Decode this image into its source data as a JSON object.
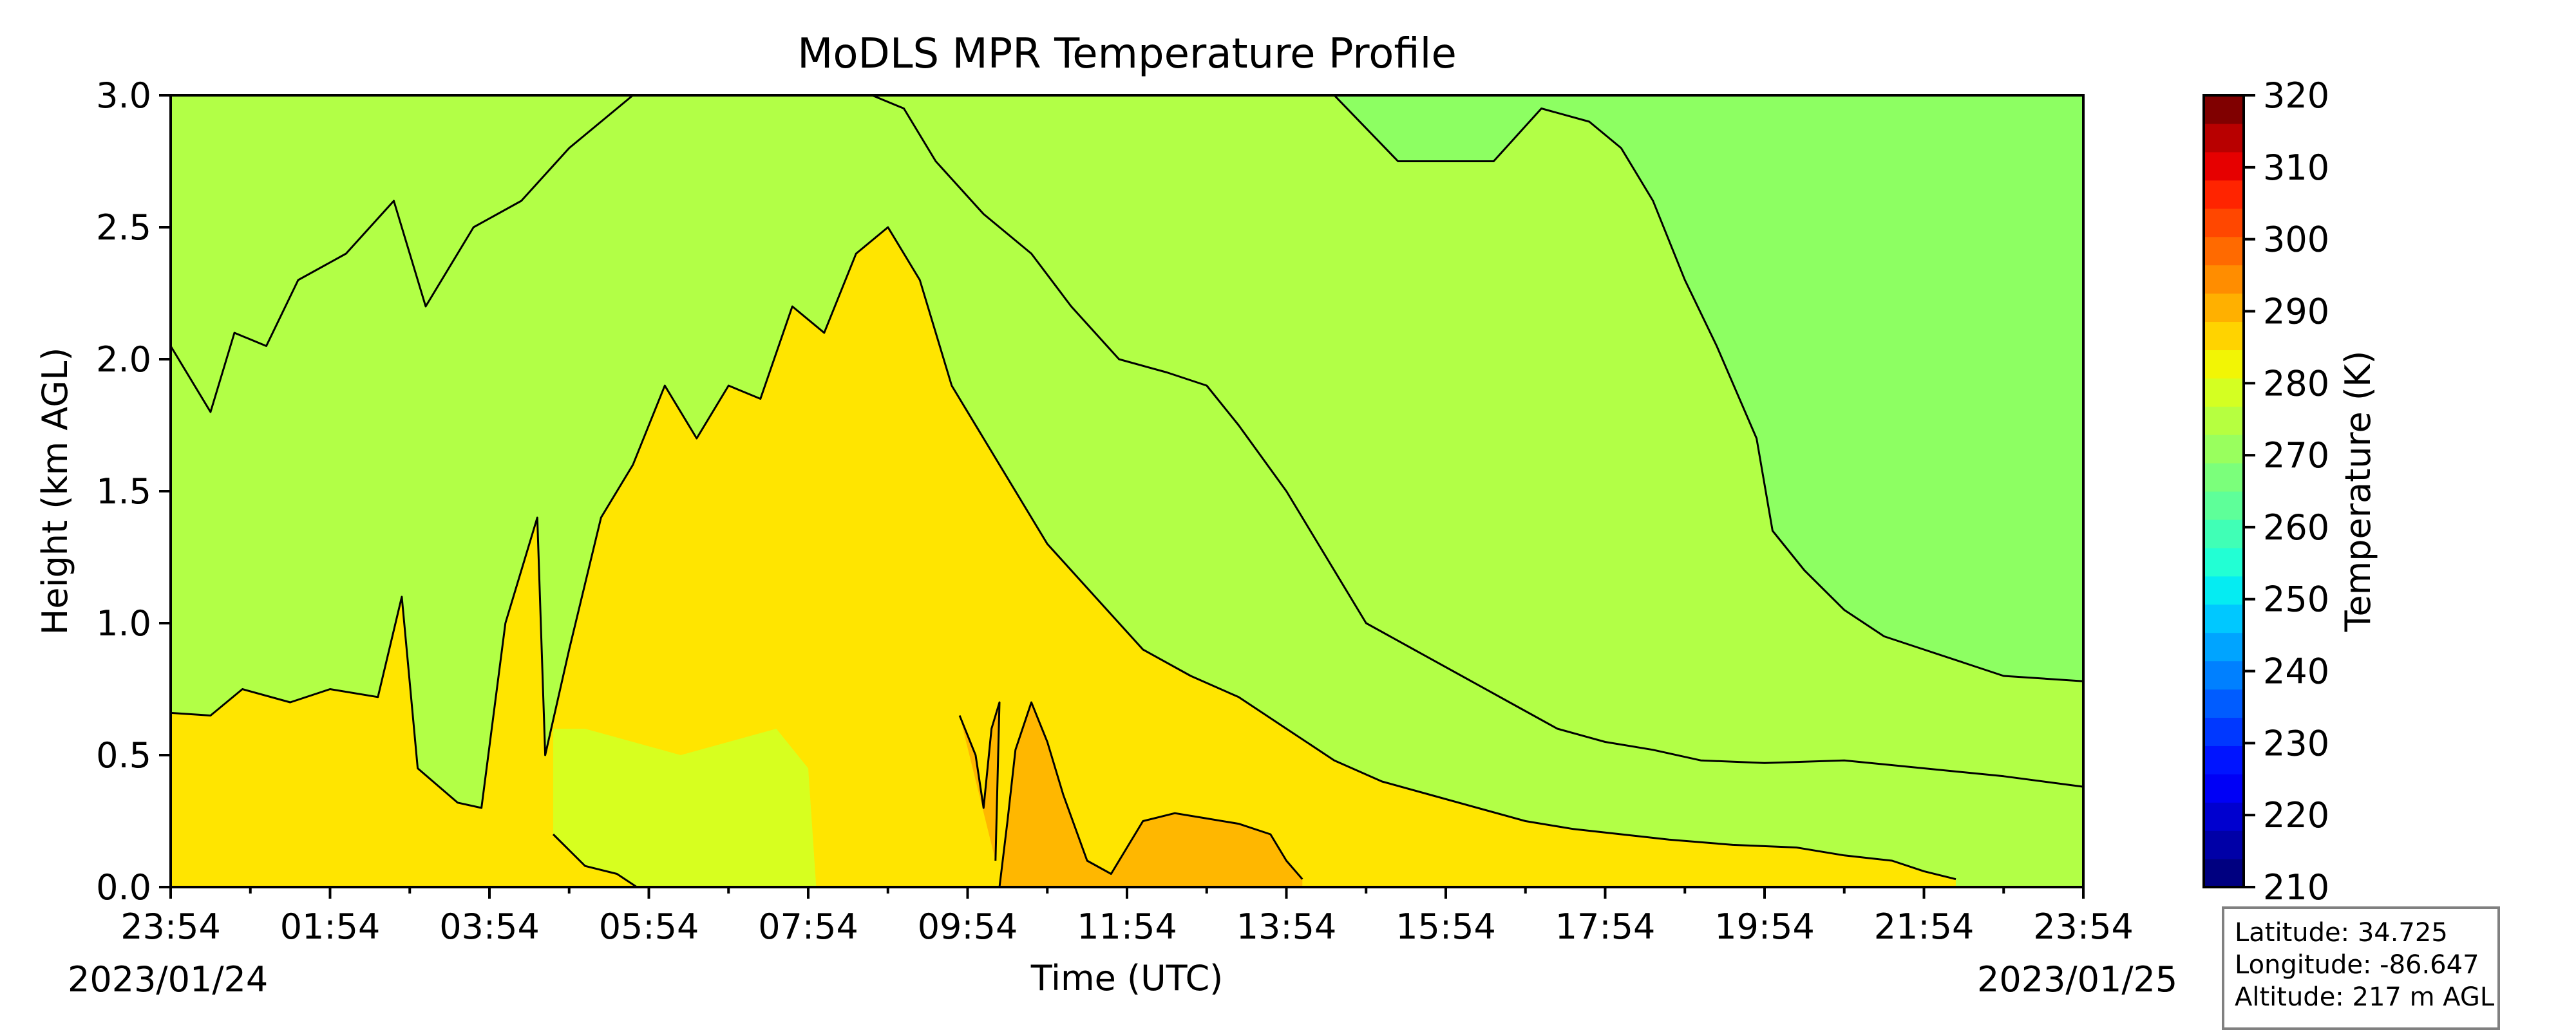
{
  "chart_data": {
    "type": "heatmap",
    "title": "MoDLS MPR Temperature Profile",
    "xlabel": "Time (UTC)",
    "ylabel": "Height (km AGL)",
    "x_tick_labels": [
      "23:54",
      "01:54",
      "03:54",
      "05:54",
      "07:54",
      "09:54",
      "11:54",
      "13:54",
      "15:54",
      "17:54",
      "19:54",
      "21:54",
      "23:54"
    ],
    "x_range_hours": [
      0,
      24
    ],
    "y_ticks": [
      0.0,
      0.5,
      1.0,
      1.5,
      2.0,
      2.5,
      3.0
    ],
    "y_tick_labels": [
      "0.0",
      "0.5",
      "1.0",
      "1.5",
      "2.0",
      "2.5",
      "3.0"
    ],
    "ylim": [
      0,
      3
    ],
    "start_date": "2023/01/24",
    "end_date": "2023/01/25",
    "colorbar": {
      "label": "Temperature (K)",
      "range": [
        210,
        320
      ],
      "step": 5,
      "tick_values": [
        210,
        220,
        230,
        240,
        250,
        260,
        270,
        280,
        290,
        300,
        310,
        320
      ],
      "tick_labels": [
        "210",
        "220",
        "230",
        "240",
        "250",
        "260",
        "270",
        "280",
        "290",
        "300",
        "310",
        "320"
      ]
    },
    "contour_levels_K": [
      270,
      275,
      280,
      285
    ],
    "contours": [
      {
        "level_K": 270,
        "points": [
          [
            14.6,
            3.0
          ],
          [
            15.4,
            2.75
          ],
          [
            16.6,
            2.75
          ],
          [
            17.2,
            2.95
          ],
          [
            17.8,
            2.9
          ],
          [
            18.2,
            2.8
          ],
          [
            18.6,
            2.6
          ],
          [
            19.0,
            2.3
          ],
          [
            19.4,
            2.05
          ],
          [
            19.9,
            1.7
          ],
          [
            20.1,
            1.35
          ],
          [
            20.5,
            1.2
          ],
          [
            21.0,
            1.05
          ],
          [
            21.5,
            0.95
          ],
          [
            22.0,
            0.9
          ],
          [
            22.5,
            0.85
          ],
          [
            23.0,
            0.8
          ],
          [
            24.0,
            0.78
          ]
        ]
      },
      {
        "level_K": 275,
        "points": [
          [
            0.0,
            2.05
          ],
          [
            0.5,
            1.8
          ],
          [
            0.8,
            2.1
          ],
          [
            1.2,
            2.05
          ],
          [
            1.6,
            2.3
          ],
          [
            2.2,
            2.4
          ],
          [
            2.8,
            2.6
          ],
          [
            3.2,
            2.2
          ],
          [
            3.8,
            2.5
          ],
          [
            4.4,
            2.6
          ],
          [
            5.0,
            2.8
          ],
          [
            5.8,
            3.0
          ],
          [
            6.4,
            3.0
          ],
          [
            7.0,
            3.0
          ],
          [
            7.6,
            3.0
          ],
          [
            8.2,
            3.0
          ],
          [
            8.8,
            3.0
          ],
          [
            9.2,
            2.95
          ],
          [
            9.6,
            2.75
          ],
          [
            10.2,
            2.55
          ],
          [
            10.8,
            2.4
          ],
          [
            11.3,
            2.2
          ],
          [
            11.9,
            2.0
          ],
          [
            12.5,
            1.95
          ],
          [
            13.0,
            1.9
          ],
          [
            13.4,
            1.75
          ],
          [
            14.0,
            1.5
          ],
          [
            14.6,
            1.2
          ],
          [
            15.0,
            1.0
          ],
          [
            15.6,
            0.9
          ],
          [
            16.2,
            0.8
          ],
          [
            16.8,
            0.7
          ],
          [
            17.4,
            0.6
          ],
          [
            18.0,
            0.55
          ],
          [
            18.6,
            0.52
          ],
          [
            19.2,
            0.48
          ],
          [
            20.0,
            0.47
          ],
          [
            21.0,
            0.48
          ],
          [
            22.0,
            0.45
          ],
          [
            23.0,
            0.42
          ],
          [
            24.0,
            0.38
          ]
        ]
      },
      {
        "level_K": 280,
        "points": [
          [
            0.0,
            0.66
          ],
          [
            0.5,
            0.65
          ],
          [
            0.9,
            0.75
          ],
          [
            1.5,
            0.7
          ],
          [
            2.0,
            0.75
          ],
          [
            2.6,
            0.72
          ],
          [
            2.9,
            1.1
          ],
          [
            3.1,
            0.45
          ],
          [
            3.6,
            0.32
          ],
          [
            3.9,
            0.3
          ],
          [
            4.2,
            1.0
          ],
          [
            4.6,
            1.4
          ],
          [
            4.7,
            0.5
          ],
          [
            5.0,
            0.9
          ],
          [
            5.4,
            1.4
          ],
          [
            5.8,
            1.6
          ],
          [
            6.2,
            1.9
          ],
          [
            6.6,
            1.7
          ],
          [
            7.0,
            1.9
          ],
          [
            7.4,
            1.85
          ],
          [
            7.8,
            2.2
          ],
          [
            8.2,
            2.1
          ],
          [
            8.6,
            2.4
          ],
          [
            9.0,
            2.5
          ],
          [
            9.4,
            2.3
          ],
          [
            9.8,
            1.9
          ],
          [
            10.2,
            1.7
          ],
          [
            10.6,
            1.5
          ],
          [
            11.0,
            1.3
          ],
          [
            11.6,
            1.1
          ],
          [
            12.2,
            0.9
          ],
          [
            12.8,
            0.8
          ],
          [
            13.4,
            0.72
          ],
          [
            14.0,
            0.6
          ],
          [
            14.6,
            0.48
          ],
          [
            15.2,
            0.4
          ],
          [
            15.8,
            0.35
          ],
          [
            16.4,
            0.3
          ],
          [
            17.0,
            0.25
          ],
          [
            17.6,
            0.22
          ],
          [
            18.2,
            0.2
          ],
          [
            18.8,
            0.18
          ],
          [
            19.6,
            0.16
          ],
          [
            20.4,
            0.15
          ],
          [
            21.0,
            0.12
          ],
          [
            21.6,
            0.1
          ],
          [
            22.0,
            0.06
          ],
          [
            22.4,
            0.03
          ]
        ]
      },
      {
        "level_K": 280,
        "points": [
          [
            4.8,
            0.2
          ],
          [
            5.2,
            0.08
          ],
          [
            5.6,
            0.05
          ],
          [
            5.85,
            0.0
          ]
        ]
      },
      {
        "level_K": 285,
        "points": [
          [
            10.4,
            0.0
          ],
          [
            10.5,
            0.25
          ],
          [
            10.6,
            0.52
          ],
          [
            10.8,
            0.7
          ],
          [
            11.0,
            0.55
          ],
          [
            11.2,
            0.35
          ],
          [
            11.5,
            0.1
          ],
          [
            11.8,
            0.05
          ],
          [
            12.2,
            0.25
          ],
          [
            12.6,
            0.28
          ],
          [
            13.0,
            0.26
          ],
          [
            13.4,
            0.24
          ],
          [
            13.8,
            0.2
          ],
          [
            14.0,
            0.1
          ],
          [
            14.2,
            0.03
          ]
        ]
      },
      {
        "level_K": 285,
        "points": [
          [
            9.9,
            0.65
          ],
          [
            10.1,
            0.5
          ],
          [
            10.2,
            0.3
          ],
          [
            10.3,
            0.6
          ],
          [
            10.4,
            0.7
          ],
          [
            10.35,
            0.1
          ]
        ]
      }
    ],
    "regions": [
      {
        "level_K": 270,
        "color": "#8dff62",
        "points": [
          [
            14.6,
            3.0
          ],
          [
            15.4,
            2.75
          ],
          [
            16.6,
            2.75
          ],
          [
            17.2,
            2.95
          ],
          [
            17.8,
            2.9
          ],
          [
            18.2,
            2.8
          ],
          [
            18.6,
            2.6
          ],
          [
            19.0,
            2.3
          ],
          [
            19.4,
            2.05
          ],
          [
            19.9,
            1.7
          ],
          [
            20.1,
            1.35
          ],
          [
            20.5,
            1.2
          ],
          [
            21.0,
            1.05
          ],
          [
            21.5,
            0.95
          ],
          [
            22.0,
            0.9
          ],
          [
            22.5,
            0.85
          ],
          [
            23.0,
            0.8
          ],
          [
            24.0,
            0.78
          ],
          [
            24.0,
            3.0
          ]
        ]
      },
      {
        "level_K": 280,
        "color": "#ffe500",
        "points": [
          [
            0.0,
            0.66
          ],
          [
            0.5,
            0.65
          ],
          [
            0.9,
            0.75
          ],
          [
            1.5,
            0.7
          ],
          [
            2.0,
            0.75
          ],
          [
            2.6,
            0.72
          ],
          [
            2.9,
            1.1
          ],
          [
            3.1,
            0.45
          ],
          [
            3.6,
            0.32
          ],
          [
            3.9,
            0.3
          ],
          [
            4.2,
            1.0
          ],
          [
            4.6,
            1.4
          ],
          [
            4.7,
            0.5
          ],
          [
            5.0,
            0.9
          ],
          [
            5.4,
            1.4
          ],
          [
            5.8,
            1.6
          ],
          [
            6.2,
            1.9
          ],
          [
            6.6,
            1.7
          ],
          [
            7.0,
            1.9
          ],
          [
            7.4,
            1.85
          ],
          [
            7.8,
            2.2
          ],
          [
            8.2,
            2.1
          ],
          [
            8.6,
            2.4
          ],
          [
            9.0,
            2.5
          ],
          [
            9.4,
            2.3
          ],
          [
            9.8,
            1.9
          ],
          [
            10.2,
            1.7
          ],
          [
            10.6,
            1.5
          ],
          [
            11.0,
            1.3
          ],
          [
            11.6,
            1.1
          ],
          [
            12.2,
            0.9
          ],
          [
            12.8,
            0.8
          ],
          [
            13.4,
            0.72
          ],
          [
            14.0,
            0.6
          ],
          [
            14.6,
            0.48
          ],
          [
            15.2,
            0.4
          ],
          [
            15.8,
            0.35
          ],
          [
            16.4,
            0.3
          ],
          [
            17.0,
            0.25
          ],
          [
            17.6,
            0.22
          ],
          [
            18.2,
            0.2
          ],
          [
            18.8,
            0.18
          ],
          [
            19.6,
            0.16
          ],
          [
            20.4,
            0.15
          ],
          [
            21.0,
            0.12
          ],
          [
            21.6,
            0.1
          ],
          [
            22.0,
            0.06
          ],
          [
            22.4,
            0.03
          ],
          [
            22.4,
            0.0
          ],
          [
            0.0,
            0.0
          ]
        ]
      },
      {
        "level_K": 275,
        "color": "#d7ff1f",
        "points": [
          [
            4.8,
            0.2
          ],
          [
            5.2,
            0.08
          ],
          [
            5.6,
            0.05
          ],
          [
            5.85,
            0.0
          ],
          [
            8.1,
            0.0
          ],
          [
            8.0,
            0.45
          ],
          [
            7.6,
            0.6
          ],
          [
            7.0,
            0.55
          ],
          [
            6.4,
            0.5
          ],
          [
            5.8,
            0.55
          ],
          [
            5.2,
            0.6
          ],
          [
            4.8,
            0.6
          ]
        ]
      },
      {
        "level_K": 285,
        "color": "#ffb700",
        "points": [
          [
            10.4,
            0.0
          ],
          [
            10.5,
            0.25
          ],
          [
            10.6,
            0.52
          ],
          [
            10.8,
            0.7
          ],
          [
            11.0,
            0.55
          ],
          [
            11.2,
            0.35
          ],
          [
            11.5,
            0.1
          ],
          [
            11.8,
            0.05
          ],
          [
            12.2,
            0.25
          ],
          [
            12.6,
            0.28
          ],
          [
            13.0,
            0.26
          ],
          [
            13.4,
            0.24
          ],
          [
            13.8,
            0.2
          ],
          [
            14.0,
            0.1
          ],
          [
            14.2,
            0.03
          ],
          [
            14.2,
            0.0
          ]
        ]
      },
      {
        "level_K": 285,
        "color": "#ffb700",
        "points": [
          [
            9.9,
            0.65
          ],
          [
            10.1,
            0.5
          ],
          [
            10.2,
            0.3
          ],
          [
            10.3,
            0.6
          ],
          [
            10.4,
            0.7
          ],
          [
            10.35,
            0.1
          ]
        ]
      }
    ],
    "background_color": "#b2ff46",
    "colormap": [
      "#000080",
      "#0000a7",
      "#0000cf",
      "#0000f6",
      "#0014ff",
      "#0038ff",
      "#005cff",
      "#0080ff",
      "#00a4ff",
      "#00c8ff",
      "#05ecf2",
      "#22ffd4",
      "#40ffb6",
      "#5eff99",
      "#7bff7b",
      "#99ff5e",
      "#b6ff40",
      "#d4ff22",
      "#f2f505",
      "#ffd300",
      "#ffb000",
      "#ff8d00",
      "#ff6a00",
      "#ff4700",
      "#ff2400",
      "#e60000",
      "#b80000",
      "#800000"
    ],
    "station": {
      "latitude": "Latitude: 34.725",
      "longitude": "Longitude: -86.647",
      "altitude": "Altitude: 217 m AGL"
    }
  }
}
